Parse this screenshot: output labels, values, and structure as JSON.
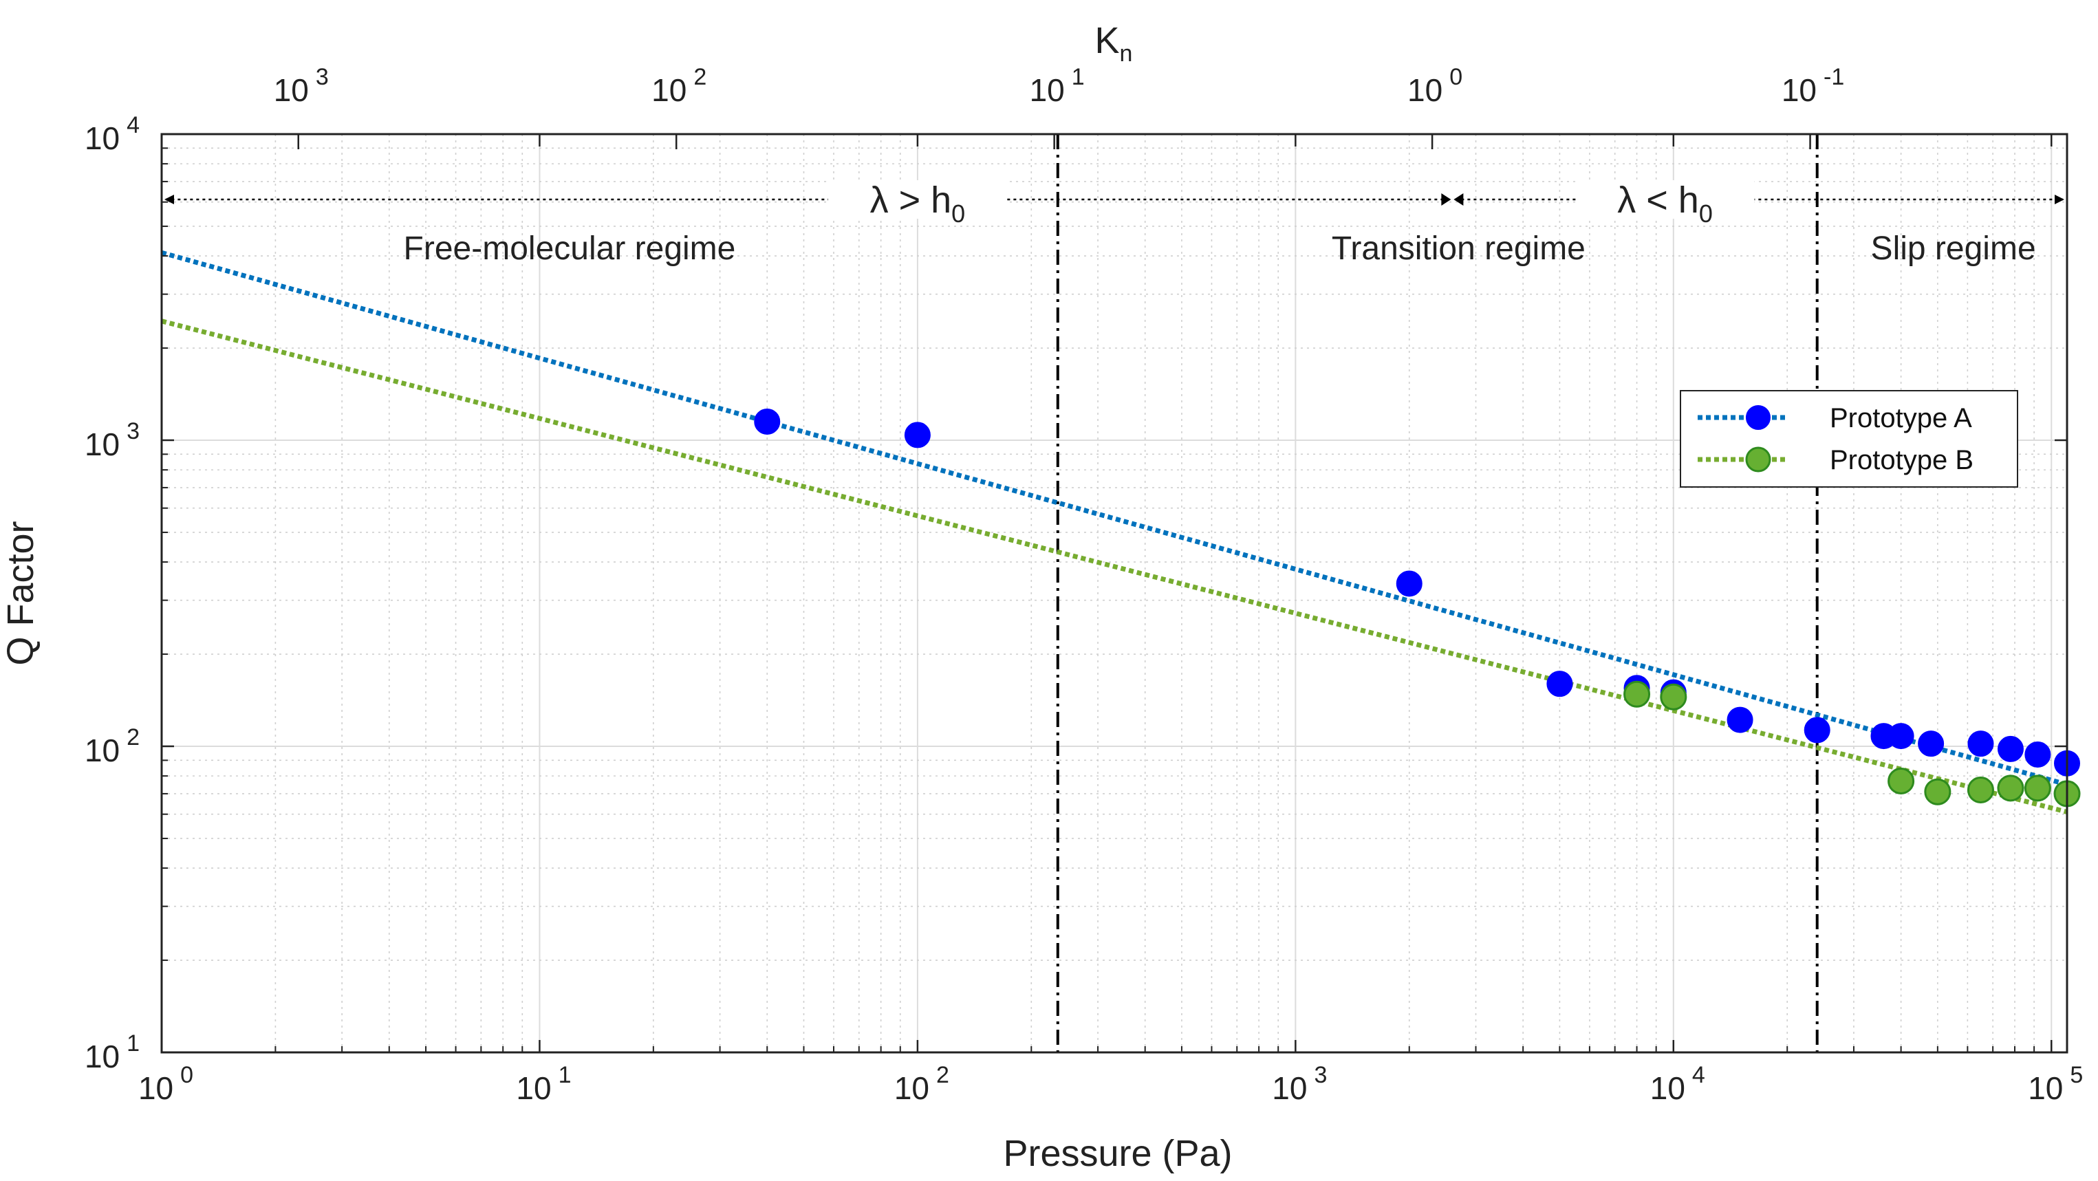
{
  "chart_data": {
    "type": "scatter",
    "xscale": "log",
    "yscale": "log",
    "xlabel": "Pressure (Pa)",
    "ylabel": "Q Factor",
    "top_axis_label_main": "K",
    "top_axis_label_sub": "n",
    "xlim": [
      1,
      110000
    ],
    "ylim": [
      10,
      10000
    ],
    "x_ticks": [
      1,
      10,
      100,
      1000,
      10000,
      100000
    ],
    "y_ticks": [
      10,
      100,
      1000,
      10000
    ],
    "x_tick_exponents": [
      "0",
      "1",
      "2",
      "3",
      "4",
      "5"
    ],
    "y_tick_exponents": [
      "1",
      "2",
      "3",
      "4"
    ],
    "tick_base": "10",
    "top_ticks": [
      {
        "kn": 1000,
        "pressure": 2.3,
        "exp": "3"
      },
      {
        "kn": 100,
        "pressure": 23,
        "exp": "2"
      },
      {
        "kn": 10,
        "pressure": 230,
        "exp": "1"
      },
      {
        "kn": 1,
        "pressure": 2300,
        "exp": "0"
      },
      {
        "kn": 0.1,
        "pressure": 23000,
        "exp": "-1"
      }
    ],
    "grid": true,
    "regime_boundaries": [
      235,
      24000
    ],
    "arrow_split": 2600,
    "regimes": [
      {
        "name": "Free-molecular regime",
        "x": 12
      },
      {
        "name": "Transition regime",
        "x": 2700
      },
      {
        "name": "Slip regime",
        "x": 55000
      }
    ],
    "conditions": [
      {
        "base": "λ > h",
        "sub": "0",
        "x": 100
      },
      {
        "base": "λ < h",
        "sub": "0",
        "x": 9500
      }
    ],
    "series": [
      {
        "name": "Prototype A",
        "color": "#0000ff",
        "edge_color": "#0000ff",
        "line_color": "#0072bd",
        "x": [
          40,
          100,
          2000,
          5000,
          8000,
          10000,
          15000,
          24000,
          36000,
          40000,
          48000,
          65000,
          78000,
          92000,
          110000
        ],
        "y": [
          1150,
          1040,
          340,
          160,
          155,
          150,
          122,
          113,
          108,
          108,
          102,
          102,
          98,
          94,
          88
        ],
        "fit": {
          "x": [
            1,
            110000
          ],
          "y": [
            4100,
            75
          ]
        }
      },
      {
        "name": "Prototype B",
        "color": "#66b032",
        "edge_color": "#2e8b1e",
        "line_color": "#77ac30",
        "x": [
          8000,
          10000,
          40000,
          50000,
          65000,
          78000,
          92000,
          110000
        ],
        "y": [
          148,
          145,
          77,
          71,
          72,
          73,
          73,
          70
        ],
        "fit": {
          "x": [
            1,
            110000
          ],
          "y": [
            2450,
            61
          ]
        }
      }
    ]
  }
}
